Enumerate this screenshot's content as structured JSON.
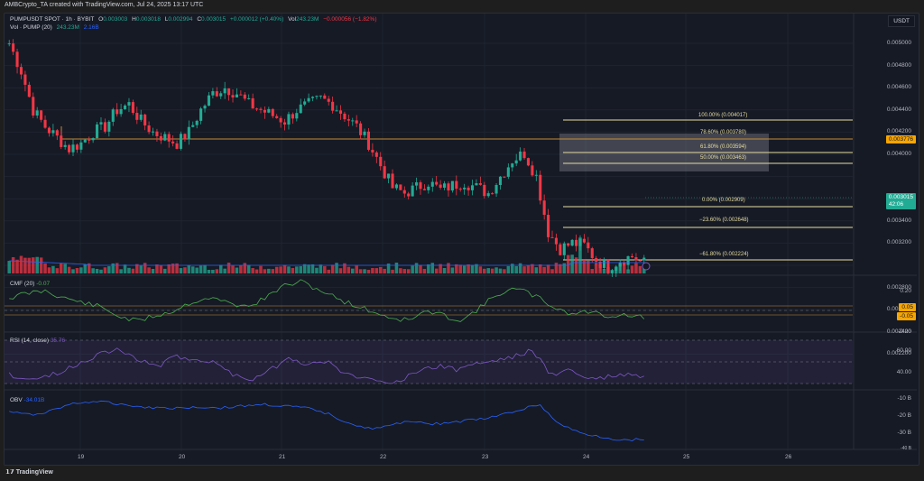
{
  "header": {
    "credit": "AMBCrypto_TA created with TradingView.com, Jul 24, 2025 13:17 UTC"
  },
  "legend": {
    "symbol": "PUMPUSDT SPOT · 1h · BYBIT",
    "o_label": "O",
    "o": "0.003003",
    "h_label": "H",
    "h": "0.003018",
    "l_label": "L",
    "l": "0.002994",
    "c_label": "C",
    "c": "0.003015",
    "change": "+0.000012 (+0.40%)",
    "vol_label": "Vol",
    "vol": "243.23M",
    "vol_change": "−0.000056 (−1.82%)",
    "vol_ind": "Vol · PUMP (20)",
    "vol_ind_v1": "243.23M",
    "vol_ind_v2": "2.16B"
  },
  "price_axis": {
    "currency": "USDT",
    "ticks": [
      "0.005000",
      "0.004800",
      "0.004600",
      "0.004400",
      "0.004200",
      "0.004000",
      "0.003600",
      "0.003400",
      "0.003200",
      "0.002800",
      "0.002600",
      "0.002400",
      "0.002200"
    ],
    "level_tag": "0.003776",
    "last_price": "0.003015",
    "countdown": "42:06"
  },
  "fib_levels": [
    {
      "label": "100.00% (0.004017)"
    },
    {
      "label": "78.60% (0.003780)"
    },
    {
      "label": "61.80% (0.003594)"
    },
    {
      "label": "50.00% (0.003463)"
    },
    {
      "label": "0.00% (0.002909)"
    },
    {
      "label": "−23.60% (0.002648)"
    },
    {
      "label": "−61.80% (0.002224)"
    }
  ],
  "indicators": {
    "cmf": {
      "label": "CMF (20)",
      "value": "-0.07",
      "ticks": [
        "0.20",
        "-0.20"
      ],
      "tag_hi": "0.05",
      "tag_lo": "-0.05"
    },
    "rsi": {
      "label": "RSI (14, close)",
      "value": "35.76",
      "ticks": [
        "60.00",
        "40.00"
      ]
    },
    "obv": {
      "label": "OBV",
      "value": "-34.01B",
      "ticks": [
        "-10 B",
        "-20 B",
        "-30 B",
        "-40 B"
      ]
    }
  },
  "time_axis": {
    "labels": [
      "19",
      "20",
      "21",
      "22",
      "23",
      "24",
      "25",
      "26"
    ]
  },
  "footer": {
    "brand": "TradingView"
  },
  "colors": {
    "up": "#22ab94",
    "down": "#f23645",
    "fib": "#e6dca0",
    "level": "#f7a600",
    "cmf": "#4caf50",
    "rsi": "#7e57c2",
    "obv": "#2962ff",
    "bg": "#161a25"
  },
  "chart_data": {
    "type": "candlestick",
    "title": "PUMPUSDT SPOT · 1h · BYBIT",
    "x": [
      "19",
      "20",
      "21",
      "22",
      "23",
      "24"
    ],
    "ylabel": "USDT",
    "ylim": [
      0.0021,
      0.0051
    ],
    "price_path": [
      0.005,
      0.00475,
      0.0044,
      0.00425,
      0.00415,
      0.00405,
      0.0041,
      0.0042,
      0.00425,
      0.0044,
      0.00445,
      0.0043,
      0.0042,
      0.00415,
      0.0041,
      0.0042,
      0.0044,
      0.00455,
      0.0046,
      0.00455,
      0.00445,
      0.0044,
      0.00435,
      0.0043,
      0.0044,
      0.00445,
      0.0045,
      0.00445,
      0.00435,
      0.00425,
      0.0041,
      0.0039,
      0.0037,
      0.00365,
      0.0037,
      0.00375,
      0.00368,
      0.00372,
      0.00375,
      0.0037,
      0.00365,
      0.0038,
      0.00395,
      0.00401,
      0.0038,
      0.0033,
      0.00315,
      0.0032,
      0.00318,
      0.00305,
      0.00298,
      0.00305,
      0.00308,
      0.00302
    ],
    "horizontal_levels": {
      "support": 0.003776
    },
    "fibonacci": [
      {
        "ratio": 1.0,
        "price": 0.004017
      },
      {
        "ratio": 0.786,
        "price": 0.00378
      },
      {
        "ratio": 0.618,
        "price": 0.003594
      },
      {
        "ratio": 0.5,
        "price": 0.003463
      },
      {
        "ratio": 0.0,
        "price": 0.002909
      },
      {
        "ratio": -0.236,
        "price": 0.002648
      },
      {
        "ratio": -0.618,
        "price": 0.002224
      }
    ],
    "last": {
      "open": 0.003003,
      "high": 0.003018,
      "low": 0.002994,
      "close": 0.003015,
      "volume": "243.23M"
    },
    "indicators": {
      "CMF(20)": {
        "last": -0.07,
        "levels": [
          0.05,
          -0.05
        ]
      },
      "RSI(14)": {
        "last": 35.76,
        "bands": [
          70,
          50,
          30
        ]
      },
      "OBV": {
        "last": "-34.01B"
      },
      "Volume MA(20)": {
        "last": "2.16B"
      }
    }
  }
}
